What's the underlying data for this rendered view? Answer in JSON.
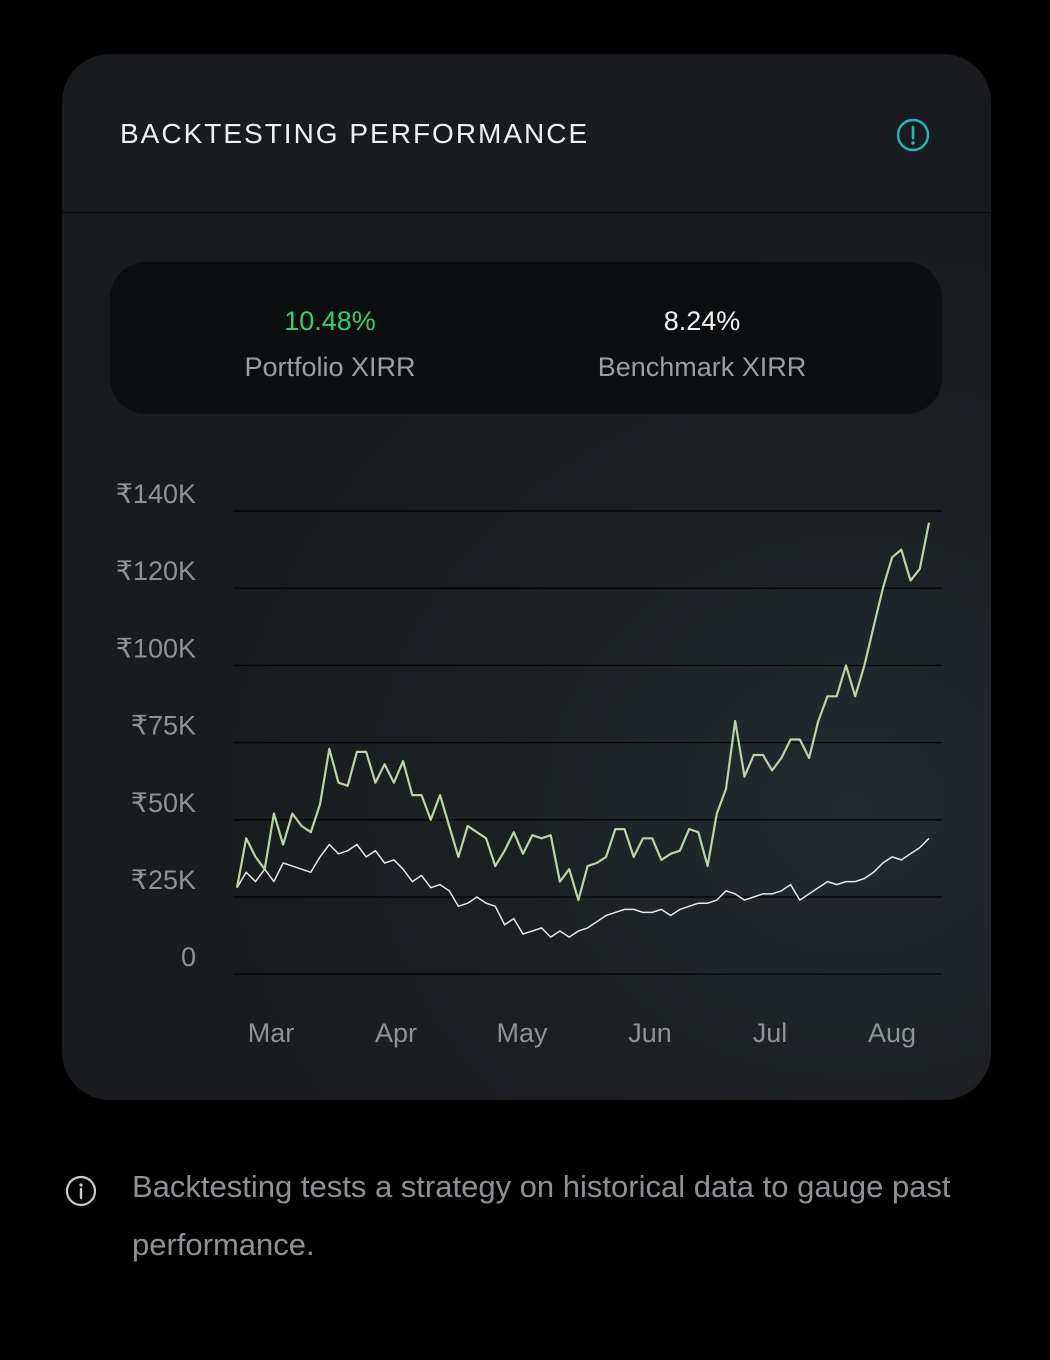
{
  "card": {
    "title": "BACKTESTING PERFORMANCE",
    "info_icon": "alert-circle-icon"
  },
  "stats": {
    "portfolio": {
      "value": "10.48%",
      "label": "Portfolio XIRR",
      "color": "#2dd36f"
    },
    "benchmark": {
      "value": "8.24%",
      "label": "Benchmark XIRR",
      "color": "#f3f4f5"
    }
  },
  "chart_data": {
    "type": "line",
    "y_ticks": [
      "₹140K",
      "₹120K",
      "₹100K",
      "₹75K",
      "₹50K",
      "₹25K",
      "0"
    ],
    "x_ticks": [
      "Mar",
      "Apr",
      "May",
      "Jun",
      "Jul",
      "Aug"
    ],
    "ylim": [
      0,
      150
    ],
    "grid": true,
    "series": [
      {
        "color": "#b9d4a6",
        "values": [
          28,
          44,
          38,
          34,
          52,
          42,
          52,
          48,
          46,
          55,
          73,
          62,
          61,
          72,
          72,
          62,
          68,
          62,
          69,
          58,
          58,
          50,
          58,
          48,
          38,
          48,
          46,
          44,
          35,
          40,
          46,
          39,
          45,
          44,
          45,
          30,
          34,
          24,
          35,
          36,
          38,
          47,
          47,
          38,
          44,
          44,
          37,
          39,
          40,
          47,
          46,
          35,
          52,
          60,
          82,
          64,
          71,
          71,
          66,
          70,
          76,
          76,
          70,
          82,
          90,
          90,
          100,
          90,
          100,
          110,
          120,
          128,
          130,
          122,
          125,
          137
        ]
      },
      {
        "color": "#e6e8ea",
        "values": [
          28,
          33,
          30,
          34,
          30,
          36,
          35,
          34,
          33,
          38,
          42,
          39,
          40,
          42,
          38,
          40,
          36,
          37,
          34,
          30,
          32,
          28,
          29,
          27,
          22,
          23,
          25,
          23,
          22,
          16,
          18,
          13,
          14,
          15,
          12,
          14,
          12,
          14,
          15,
          17,
          19,
          20,
          21,
          21,
          20,
          20,
          21,
          19,
          21,
          22,
          23,
          23,
          24,
          27,
          26,
          24,
          25,
          26,
          26,
          27,
          29,
          24,
          26,
          28,
          30,
          29,
          30,
          30,
          31,
          33,
          36,
          38,
          37,
          39,
          41,
          44
        ]
      }
    ]
  },
  "footnote": {
    "icon": "info-circle-icon",
    "text": "Backtesting tests a strategy on historical data to gauge past performance."
  }
}
